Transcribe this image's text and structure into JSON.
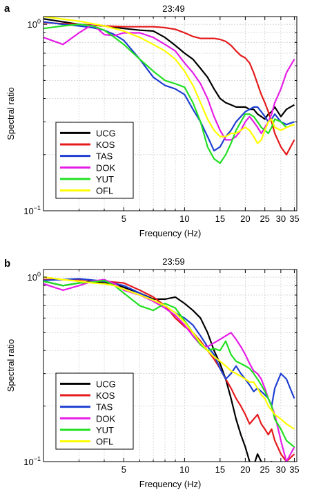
{
  "chart_data": [
    {
      "type": "line",
      "panel_label": "a",
      "title": "23:49",
      "xlabel": "Frequency (Hz)",
      "ylabel": "Spectral ratio",
      "xscale": "log",
      "yscale": "log",
      "xlim": [
        2,
        36
      ],
      "ylim": [
        0.1,
        1.1
      ],
      "xticks": [
        5,
        10,
        15,
        20,
        25,
        30,
        35
      ],
      "xtick_labels": [
        "5",
        "10",
        "15",
        "20",
        "25",
        "30",
        "35"
      ],
      "ytick_labels": [
        {
          "base": "10",
          "exp": "0"
        },
        {
          "base": "10",
          "exp": "−1"
        }
      ],
      "grid": true,
      "legend_position": "lower-left",
      "series": [
        {
          "name": "UCG",
          "color": "#000000",
          "x": [
            2,
            3,
            4,
            5,
            6,
            7,
            8,
            9,
            10,
            11,
            12,
            13,
            14,
            15,
            16,
            17,
            18,
            19,
            20,
            21,
            22,
            23,
            24,
            25,
            26,
            27,
            28,
            30,
            32,
            35
          ],
          "y": [
            1.07,
            1.0,
            0.98,
            0.95,
            0.93,
            0.92,
            0.85,
            0.77,
            0.7,
            0.65,
            0.58,
            0.52,
            0.45,
            0.4,
            0.38,
            0.37,
            0.36,
            0.36,
            0.36,
            0.35,
            0.35,
            0.33,
            0.32,
            0.31,
            0.33,
            0.34,
            0.36,
            0.32,
            0.35,
            0.37
          ]
        },
        {
          "name": "KOS",
          "color": "#e41a1c",
          "x": [
            2,
            3,
            4,
            5,
            6,
            7,
            8,
            9,
            10,
            11,
            12,
            13,
            14,
            15,
            16,
            17,
            18,
            19,
            20,
            21,
            22,
            23,
            24,
            25,
            26,
            27,
            28,
            30,
            32,
            35
          ],
          "y": [
            1.02,
            1.0,
            0.98,
            0.97,
            0.97,
            0.97,
            0.96,
            0.94,
            0.9,
            0.86,
            0.84,
            0.84,
            0.84,
            0.83,
            0.81,
            0.77,
            0.72,
            0.68,
            0.66,
            0.62,
            0.55,
            0.48,
            0.42,
            0.38,
            0.34,
            0.3,
            0.26,
            0.22,
            0.2,
            0.24
          ]
        },
        {
          "name": "TAS",
          "color": "#1f3fd1",
          "x": [
            2,
            2.5,
            3,
            3.5,
            4,
            4.5,
            5,
            6,
            7,
            8,
            9,
            10,
            11,
            12,
            13,
            14,
            15,
            16,
            17,
            18,
            19,
            20,
            21,
            22,
            23,
            24,
            25,
            26,
            27,
            28,
            30,
            32,
            35
          ],
          "y": [
            1.03,
            1.0,
            0.98,
            0.96,
            0.93,
            0.88,
            0.82,
            0.65,
            0.52,
            0.47,
            0.45,
            0.42,
            0.35,
            0.3,
            0.25,
            0.21,
            0.22,
            0.25,
            0.27,
            0.3,
            0.32,
            0.34,
            0.35,
            0.36,
            0.36,
            0.34,
            0.32,
            0.3,
            0.31,
            0.33,
            0.3,
            0.29,
            0.3
          ]
        },
        {
          "name": "DOK",
          "color": "#e61ce6",
          "x": [
            2,
            2.5,
            3,
            3.5,
            4,
            4.5,
            5,
            6,
            7,
            8,
            9,
            10,
            11,
            12,
            13,
            14,
            15,
            16,
            17,
            18,
            19,
            20,
            21,
            22,
            23,
            24,
            25,
            26,
            27,
            28,
            30,
            32,
            35
          ],
          "y": [
            0.85,
            0.78,
            0.9,
            1.0,
            0.88,
            0.87,
            0.9,
            0.9,
            0.85,
            0.78,
            0.72,
            0.62,
            0.55,
            0.48,
            0.4,
            0.32,
            0.27,
            0.24,
            0.24,
            0.25,
            0.27,
            0.3,
            0.32,
            0.3,
            0.28,
            0.26,
            0.28,
            0.3,
            0.33,
            0.38,
            0.45,
            0.55,
            0.65
          ]
        },
        {
          "name": "YUT",
          "color": "#22e022",
          "x": [
            2,
            2.5,
            3,
            3.5,
            4,
            4.5,
            5,
            6,
            7,
            8,
            9,
            10,
            11,
            12,
            13,
            14,
            15,
            16,
            17,
            18,
            19,
            20,
            21,
            22,
            23,
            24,
            25,
            26,
            27,
            28,
            30,
            32,
            35
          ],
          "y": [
            0.95,
            0.98,
            1.0,
            0.98,
            0.93,
            0.85,
            0.78,
            0.65,
            0.56,
            0.5,
            0.48,
            0.46,
            0.38,
            0.3,
            0.22,
            0.19,
            0.18,
            0.2,
            0.23,
            0.27,
            0.3,
            0.33,
            0.33,
            0.32,
            0.3,
            0.28,
            0.27,
            0.26,
            0.28,
            0.31,
            0.3,
            0.28,
            0.29
          ]
        },
        {
          "name": "OFL",
          "color": "#ffff00",
          "x": [
            2,
            3,
            4,
            5,
            6,
            7,
            8,
            9,
            10,
            11,
            12,
            13,
            14,
            15,
            16,
            17,
            18,
            19,
            20,
            21,
            22,
            23,
            24,
            25,
            26,
            27,
            28,
            30,
            32,
            35
          ],
          "y": [
            1.1,
            1.04,
            0.98,
            0.92,
            0.85,
            0.78,
            0.72,
            0.65,
            0.56,
            0.47,
            0.38,
            0.31,
            0.27,
            0.25,
            0.25,
            0.26,
            0.26,
            0.27,
            0.28,
            0.27,
            0.25,
            0.23,
            0.24,
            0.27,
            0.3,
            0.31,
            0.28,
            0.27,
            0.28,
            0.29
          ]
        }
      ]
    },
    {
      "type": "line",
      "panel_label": "b",
      "title": "23:59",
      "xlabel": "Frequency (Hz)",
      "ylabel": "Spectral ratio",
      "xscale": "log",
      "yscale": "log",
      "xlim": [
        2,
        36
      ],
      "ylim": [
        0.1,
        1.1
      ],
      "xticks": [
        5,
        10,
        15,
        20,
        25,
        30,
        35
      ],
      "xtick_labels": [
        "5",
        "10",
        "15",
        "20",
        "25",
        "30",
        "35"
      ],
      "ytick_labels": [
        {
          "base": "10",
          "exp": "0"
        },
        {
          "base": "10",
          "exp": "−1"
        }
      ],
      "grid": true,
      "legend_position": "lower-left",
      "series": [
        {
          "name": "UCG",
          "color": "#000000",
          "x": [
            2,
            2.5,
            3,
            3.5,
            4,
            4.5,
            5,
            6,
            7,
            8,
            9,
            10,
            11,
            12,
            13,
            14,
            15,
            16,
            17,
            18,
            19,
            20,
            21,
            22,
            23,
            24,
            25,
            26,
            27,
            28,
            30,
            32,
            35
          ],
          "y": [
            0.95,
            0.9,
            0.93,
            0.95,
            0.93,
            0.92,
            0.88,
            0.82,
            0.76,
            0.76,
            0.78,
            0.72,
            0.66,
            0.6,
            0.5,
            0.4,
            0.34,
            0.28,
            0.22,
            0.17,
            0.14,
            0.12,
            0.1,
            0.095,
            0.11,
            0.1,
            0.09,
            0.095,
            0.1,
            0.09,
            0.095,
            0.09,
            0.1
          ]
        },
        {
          "name": "KOS",
          "color": "#e41a1c",
          "x": [
            2,
            3,
            4,
            5,
            6,
            7,
            8,
            9,
            10,
            11,
            12,
            13,
            14,
            15,
            16,
            17,
            18,
            19,
            20,
            21,
            22,
            23,
            24,
            25,
            26,
            27,
            28,
            30,
            32,
            35
          ],
          "y": [
            0.97,
            0.97,
            0.95,
            0.93,
            0.85,
            0.78,
            0.7,
            0.6,
            0.54,
            0.5,
            0.45,
            0.4,
            0.36,
            0.32,
            0.28,
            0.25,
            0.22,
            0.2,
            0.18,
            0.16,
            0.17,
            0.18,
            0.16,
            0.15,
            0.14,
            0.15,
            0.13,
            0.11,
            0.1,
            0.11
          ]
        },
        {
          "name": "TAS",
          "color": "#1f3fd1",
          "x": [
            2,
            3,
            4,
            5,
            6,
            7,
            8,
            9,
            10,
            11,
            12,
            13,
            14,
            15,
            16,
            17,
            18,
            19,
            20,
            21,
            22,
            23,
            24,
            25,
            26,
            27,
            28,
            30,
            32,
            35
          ],
          "y": [
            0.96,
            0.98,
            0.95,
            0.9,
            0.82,
            0.75,
            0.7,
            0.64,
            0.6,
            0.55,
            0.48,
            0.42,
            0.38,
            0.32,
            0.28,
            0.3,
            0.33,
            0.3,
            0.28,
            0.26,
            0.24,
            0.25,
            0.24,
            0.23,
            0.22,
            0.2,
            0.25,
            0.3,
            0.28,
            0.22
          ]
        },
        {
          "name": "DOK",
          "color": "#e61ce6",
          "x": [
            2,
            2.5,
            3,
            3.5,
            4,
            4.5,
            5,
            6,
            7,
            8,
            9,
            10,
            11,
            12,
            13,
            14,
            15,
            16,
            17,
            18,
            19,
            20,
            21,
            22,
            23,
            24,
            25,
            26,
            27,
            28,
            30,
            32,
            35
          ],
          "y": [
            0.92,
            0.85,
            0.9,
            0.95,
            0.97,
            0.92,
            0.85,
            0.8,
            0.74,
            0.68,
            0.62,
            0.55,
            0.48,
            0.43,
            0.42,
            0.44,
            0.46,
            0.48,
            0.5,
            0.46,
            0.42,
            0.38,
            0.34,
            0.31,
            0.3,
            0.28,
            0.25,
            0.22,
            0.2,
            0.18,
            0.13,
            0.1,
            0.12
          ]
        },
        {
          "name": "YUT",
          "color": "#22e022",
          "x": [
            2,
            2.5,
            3,
            3.5,
            4,
            4.5,
            5,
            6,
            7,
            8,
            9,
            10,
            11,
            12,
            13,
            14,
            15,
            16,
            17,
            18,
            19,
            20,
            21,
            22,
            23,
            24,
            25,
            26,
            27,
            28,
            30,
            32,
            35
          ],
          "y": [
            0.95,
            0.9,
            0.93,
            0.94,
            0.96,
            0.9,
            0.82,
            0.7,
            0.66,
            0.72,
            0.68,
            0.58,
            0.5,
            0.43,
            0.4,
            0.41,
            0.4,
            0.45,
            0.38,
            0.35,
            0.34,
            0.33,
            0.32,
            0.3,
            0.28,
            0.26,
            0.24,
            0.22,
            0.2,
            0.17,
            0.15,
            0.13,
            0.12
          ]
        },
        {
          "name": "OFL",
          "color": "#ffff00",
          "x": [
            2,
            2.5,
            3,
            3.5,
            4,
            4.5,
            5,
            6,
            7,
            8,
            9,
            10,
            11,
            12,
            13,
            14,
            15,
            16,
            17,
            18,
            19,
            20,
            21,
            22,
            23,
            24,
            25,
            26,
            27,
            28,
            30,
            32,
            35
          ],
          "y": [
            1.0,
            0.97,
            0.95,
            0.93,
            0.92,
            0.9,
            0.86,
            0.8,
            0.75,
            0.7,
            0.64,
            0.57,
            0.5,
            0.44,
            0.4,
            0.37,
            0.35,
            0.33,
            0.31,
            0.3,
            0.29,
            0.28,
            0.27,
            0.27,
            0.25,
            0.23,
            0.22,
            0.2,
            0.19,
            0.18,
            0.17,
            0.16,
            0.15
          ]
        }
      ]
    }
  ]
}
